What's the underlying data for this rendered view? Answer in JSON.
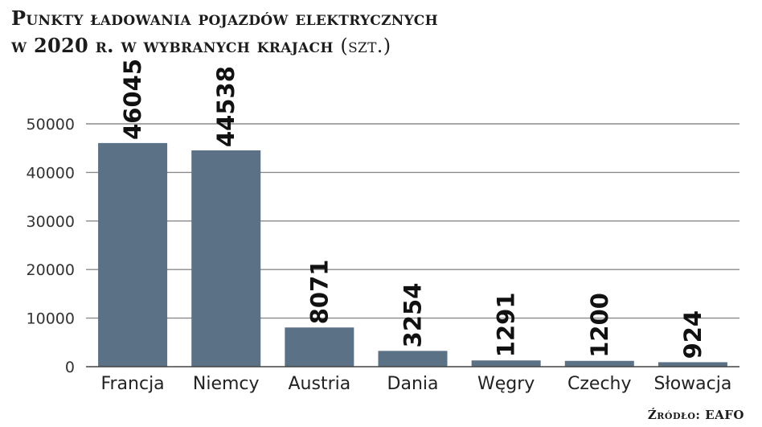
{
  "chart_data": {
    "type": "bar",
    "title_line1": "Punkty ładowania pojazdów elektrycznych",
    "title_line2": "w 2020 r. w wybranych krajach",
    "title_unit": "(szt.)",
    "categories": [
      "Francja",
      "Niemcy",
      "Austria",
      "Dania",
      "Węgry",
      "Czechy",
      "Słowacja"
    ],
    "values": [
      46045,
      44538,
      8071,
      3254,
      1291,
      1200,
      924
    ],
    "yticks": [
      0,
      10000,
      20000,
      30000,
      40000,
      50000
    ],
    "ylim": [
      0,
      50000
    ],
    "xlabel": "",
    "ylabel": "",
    "grid": true,
    "bar_color": "#5b7186",
    "grid_color": "#8a8a8a"
  },
  "source": {
    "label": "Źródło:",
    "value": "EAFO"
  }
}
